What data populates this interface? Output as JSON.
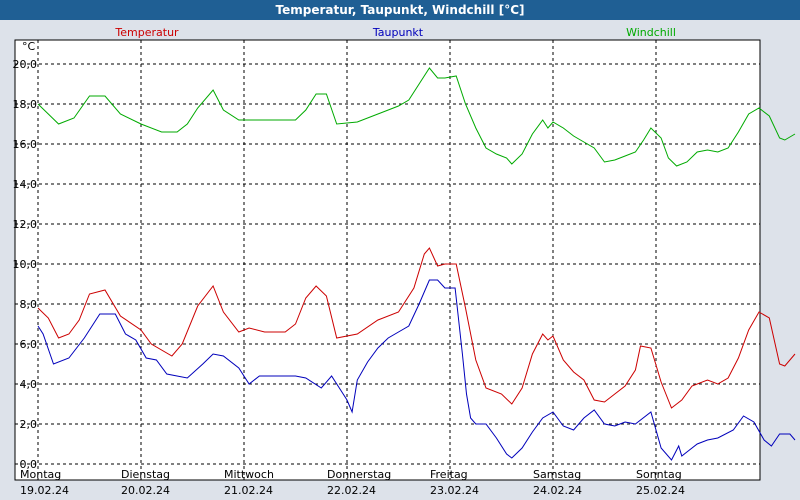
{
  "window": {
    "title": "Temperatur, Taupunkt, Windchill [°C]"
  },
  "chart_data": {
    "type": "line",
    "title": "Temperatur, Taupunkt, Windchill [°C]",
    "ylabel": "°C",
    "xlabel": "",
    "ylim": [
      -0.8,
      21.2
    ],
    "xlim": [
      0,
      7.12
    ],
    "grid": true,
    "yticks": [
      "20,0",
      "18,0",
      "16,0",
      "14,0",
      "12,0",
      "10,0",
      "8,0",
      "6,0",
      "4,0",
      "2,0",
      "0,0"
    ],
    "ytick_values": [
      20,
      18,
      16,
      14,
      12,
      10,
      8,
      6,
      4,
      2,
      0
    ],
    "days": [
      {
        "name": "Montag",
        "date": "19.02.24"
      },
      {
        "name": "Dienstag",
        "date": "20.02.24"
      },
      {
        "name": "Mittwoch",
        "date": "21.02.24"
      },
      {
        "name": "Donnerstag",
        "date": "22.02.24"
      },
      {
        "name": "Freitag",
        "date": "23.02.24"
      },
      {
        "name": "Samstag",
        "date": "24.02.24"
      },
      {
        "name": "Sonntag",
        "date": "25.02.24"
      }
    ],
    "series": [
      {
        "name": "Temperatur",
        "color": "#cc0000",
        "points": [
          [
            0,
            7.8
          ],
          [
            0.1,
            7.3
          ],
          [
            0.2,
            6.3
          ],
          [
            0.3,
            6.5
          ],
          [
            0.4,
            7.2
          ],
          [
            0.5,
            8.5
          ],
          [
            0.65,
            8.7
          ],
          [
            0.8,
            7.4
          ],
          [
            1,
            6.7
          ],
          [
            1.1,
            6
          ],
          [
            1.3,
            5.4
          ],
          [
            1.4,
            6
          ],
          [
            1.55,
            7.9
          ],
          [
            1.7,
            8.9
          ],
          [
            1.8,
            7.6
          ],
          [
            1.95,
            6.6
          ],
          [
            2.05,
            6.8
          ],
          [
            2.2,
            6.6
          ],
          [
            2.4,
            6.6
          ],
          [
            2.5,
            7
          ],
          [
            2.6,
            8.3
          ],
          [
            2.7,
            8.9
          ],
          [
            2.8,
            8.4
          ],
          [
            2.9,
            6.3
          ],
          [
            3.1,
            6.5
          ],
          [
            3.3,
            7.2
          ],
          [
            3.5,
            7.6
          ],
          [
            3.65,
            8.8
          ],
          [
            3.75,
            10.5
          ],
          [
            3.8,
            10.8
          ],
          [
            3.88,
            9.9
          ],
          [
            3.95,
            10
          ],
          [
            4.06,
            10
          ],
          [
            4.15,
            7.8
          ],
          [
            4.25,
            5.2
          ],
          [
            4.35,
            3.8
          ],
          [
            4.5,
            3.5
          ],
          [
            4.6,
            3
          ],
          [
            4.7,
            3.8
          ],
          [
            4.8,
            5.5
          ],
          [
            4.9,
            6.5
          ],
          [
            4.95,
            6.2
          ],
          [
            5,
            6.4
          ],
          [
            5.1,
            5.2
          ],
          [
            5.2,
            4.6
          ],
          [
            5.3,
            4.2
          ],
          [
            5.4,
            3.2
          ],
          [
            5.5,
            3.1
          ],
          [
            5.6,
            3.5
          ],
          [
            5.7,
            3.9
          ],
          [
            5.8,
            4.7
          ],
          [
            5.85,
            5.9
          ],
          [
            5.95,
            5.8
          ],
          [
            6.05,
            4.1
          ],
          [
            6.15,
            2.8
          ],
          [
            6.25,
            3.2
          ],
          [
            6.35,
            3.9
          ],
          [
            6.5,
            4.2
          ],
          [
            6.6,
            4
          ],
          [
            6.7,
            4.3
          ],
          [
            6.8,
            5.3
          ],
          [
            6.9,
            6.7
          ],
          [
            7,
            7.6
          ],
          [
            7.1,
            7.3
          ],
          [
            7.2,
            5
          ],
          [
            7.25,
            4.9
          ],
          [
            7.35,
            5.5
          ]
        ]
      },
      {
        "name": "Taupunkt",
        "color": "#0000bb",
        "points": [
          [
            0,
            6.9
          ],
          [
            0.05,
            6.5
          ],
          [
            0.15,
            5
          ],
          [
            0.3,
            5.3
          ],
          [
            0.45,
            6.3
          ],
          [
            0.6,
            7.5
          ],
          [
            0.75,
            7.5
          ],
          [
            0.85,
            6.5
          ],
          [
            0.95,
            6.2
          ],
          [
            1.05,
            5.3
          ],
          [
            1.15,
            5.2
          ],
          [
            1.25,
            4.5
          ],
          [
            1.45,
            4.3
          ],
          [
            1.6,
            5
          ],
          [
            1.7,
            5.5
          ],
          [
            1.8,
            5.4
          ],
          [
            1.95,
            4.8
          ],
          [
            2.05,
            4
          ],
          [
            2.15,
            4.4
          ],
          [
            2.3,
            4.4
          ],
          [
            2.5,
            4.4
          ],
          [
            2.6,
            4.3
          ],
          [
            2.75,
            3.8
          ],
          [
            2.85,
            4.4
          ],
          [
            2.95,
            3.6
          ],
          [
            3,
            3.2
          ],
          [
            3.05,
            2.6
          ],
          [
            3.1,
            4.2
          ],
          [
            3.2,
            5.1
          ],
          [
            3.3,
            5.8
          ],
          [
            3.4,
            6.3
          ],
          [
            3.5,
            6.6
          ],
          [
            3.6,
            6.9
          ],
          [
            3.7,
            8
          ],
          [
            3.8,
            9.2
          ],
          [
            3.88,
            9.2
          ],
          [
            3.95,
            8.8
          ],
          [
            4.05,
            8.8
          ],
          [
            4.12,
            5.5
          ],
          [
            4.16,
            3.5
          ],
          [
            4.2,
            2.3
          ],
          [
            4.25,
            2
          ],
          [
            4.35,
            2
          ],
          [
            4.45,
            1.3
          ],
          [
            4.55,
            0.5
          ],
          [
            4.6,
            0.3
          ],
          [
            4.7,
            0.8
          ],
          [
            4.8,
            1.6
          ],
          [
            4.9,
            2.3
          ],
          [
            5,
            2.6
          ],
          [
            5.1,
            1.9
          ],
          [
            5.2,
            1.7
          ],
          [
            5.3,
            2.3
          ],
          [
            5.4,
            2.7
          ],
          [
            5.5,
            2
          ],
          [
            5.6,
            1.9
          ],
          [
            5.7,
            2.1
          ],
          [
            5.8,
            2
          ],
          [
            5.95,
            2.6
          ],
          [
            6.05,
            0.8
          ],
          [
            6.15,
            0.2
          ],
          [
            6.22,
            0.9
          ],
          [
            6.25,
            0.4
          ],
          [
            6.3,
            0.6
          ],
          [
            6.4,
            1
          ],
          [
            6.5,
            1.2
          ],
          [
            6.6,
            1.3
          ],
          [
            6.75,
            1.7
          ],
          [
            6.85,
            2.4
          ],
          [
            6.95,
            2.1
          ],
          [
            7.05,
            1.2
          ],
          [
            7.12,
            0.9
          ],
          [
            7.2,
            1.5
          ],
          [
            7.3,
            1.5
          ],
          [
            7.35,
            1.2
          ]
        ]
      },
      {
        "name": "Windchill",
        "color": "#00aa00",
        "points": [
          [
            0,
            18
          ],
          [
            0.1,
            17.5
          ],
          [
            0.2,
            17
          ],
          [
            0.35,
            17.3
          ],
          [
            0.5,
            18.4
          ],
          [
            0.65,
            18.4
          ],
          [
            0.8,
            17.5
          ],
          [
            1,
            17
          ],
          [
            1.2,
            16.6
          ],
          [
            1.35,
            16.6
          ],
          [
            1.45,
            17
          ],
          [
            1.55,
            17.8
          ],
          [
            1.7,
            18.7
          ],
          [
            1.8,
            17.7
          ],
          [
            1.95,
            17.2
          ],
          [
            2.1,
            17.2
          ],
          [
            2.3,
            17.2
          ],
          [
            2.5,
            17.2
          ],
          [
            2.6,
            17.7
          ],
          [
            2.7,
            18.5
          ],
          [
            2.8,
            18.5
          ],
          [
            2.9,
            17
          ],
          [
            3.1,
            17.1
          ],
          [
            3.3,
            17.5
          ],
          [
            3.5,
            17.9
          ],
          [
            3.6,
            18.2
          ],
          [
            3.7,
            19
          ],
          [
            3.8,
            19.8
          ],
          [
            3.88,
            19.3
          ],
          [
            3.95,
            19.3
          ],
          [
            4.06,
            19.4
          ],
          [
            4.15,
            18
          ],
          [
            4.25,
            16.8
          ],
          [
            4.35,
            15.8
          ],
          [
            4.45,
            15.5
          ],
          [
            4.55,
            15.3
          ],
          [
            4.6,
            15
          ],
          [
            4.7,
            15.5
          ],
          [
            4.8,
            16.5
          ],
          [
            4.9,
            17.2
          ],
          [
            4.95,
            16.8
          ],
          [
            5,
            17.1
          ],
          [
            5.1,
            16.8
          ],
          [
            5.2,
            16.4
          ],
          [
            5.3,
            16.1
          ],
          [
            5.4,
            15.8
          ],
          [
            5.5,
            15.1
          ],
          [
            5.6,
            15.2
          ],
          [
            5.7,
            15.4
          ],
          [
            5.8,
            15.6
          ],
          [
            5.88,
            16.2
          ],
          [
            5.95,
            16.8
          ],
          [
            6.05,
            16.3
          ],
          [
            6.12,
            15.3
          ],
          [
            6.2,
            14.9
          ],
          [
            6.3,
            15.1
          ],
          [
            6.4,
            15.6
          ],
          [
            6.5,
            15.7
          ],
          [
            6.6,
            15.6
          ],
          [
            6.7,
            15.8
          ],
          [
            6.8,
            16.6
          ],
          [
            6.9,
            17.5
          ],
          [
            7,
            17.8
          ],
          [
            7.1,
            17.4
          ],
          [
            7.2,
            16.3
          ],
          [
            7.25,
            16.2
          ],
          [
            7.35,
            16.5
          ]
        ]
      }
    ]
  }
}
